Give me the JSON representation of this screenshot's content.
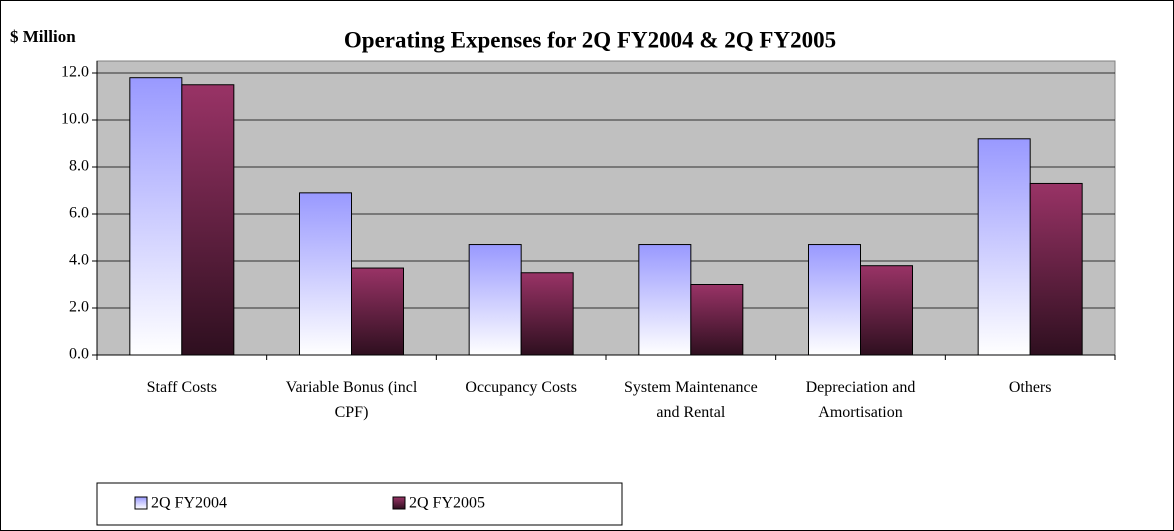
{
  "chart_data": {
    "type": "bar",
    "title": "Operating Expenses for 2Q FY2004 & 2Q FY2005",
    "y_axis_label": "$ Million",
    "categories": [
      "Staff Costs",
      "Variable Bonus (incl CPF)",
      "Occupancy Costs",
      "System Maintenance and Rental",
      "Depreciation and Amortisation",
      "Others"
    ],
    "series": [
      {
        "name": "2Q FY2004",
        "color": "#9999ff",
        "values": [
          11.8,
          6.9,
          4.7,
          4.7,
          4.7,
          9.2
        ]
      },
      {
        "name": "2Q FY2005",
        "color": "#993366",
        "values": [
          11.5,
          3.7,
          3.5,
          3.0,
          3.8,
          7.3
        ]
      }
    ],
    "ylim": [
      0,
      12
    ],
    "yticks": [
      {
        "value": 0,
        "label": "0.0"
      },
      {
        "value": 2,
        "label": "2.0"
      },
      {
        "value": 4,
        "label": "4.0"
      },
      {
        "value": 6,
        "label": "6.0"
      },
      {
        "value": 8,
        "label": "8.0"
      },
      {
        "value": 10,
        "label": "10.0"
      },
      {
        "value": 12,
        "label": "12.0"
      }
    ],
    "grid": true,
    "legend": "bottom"
  }
}
